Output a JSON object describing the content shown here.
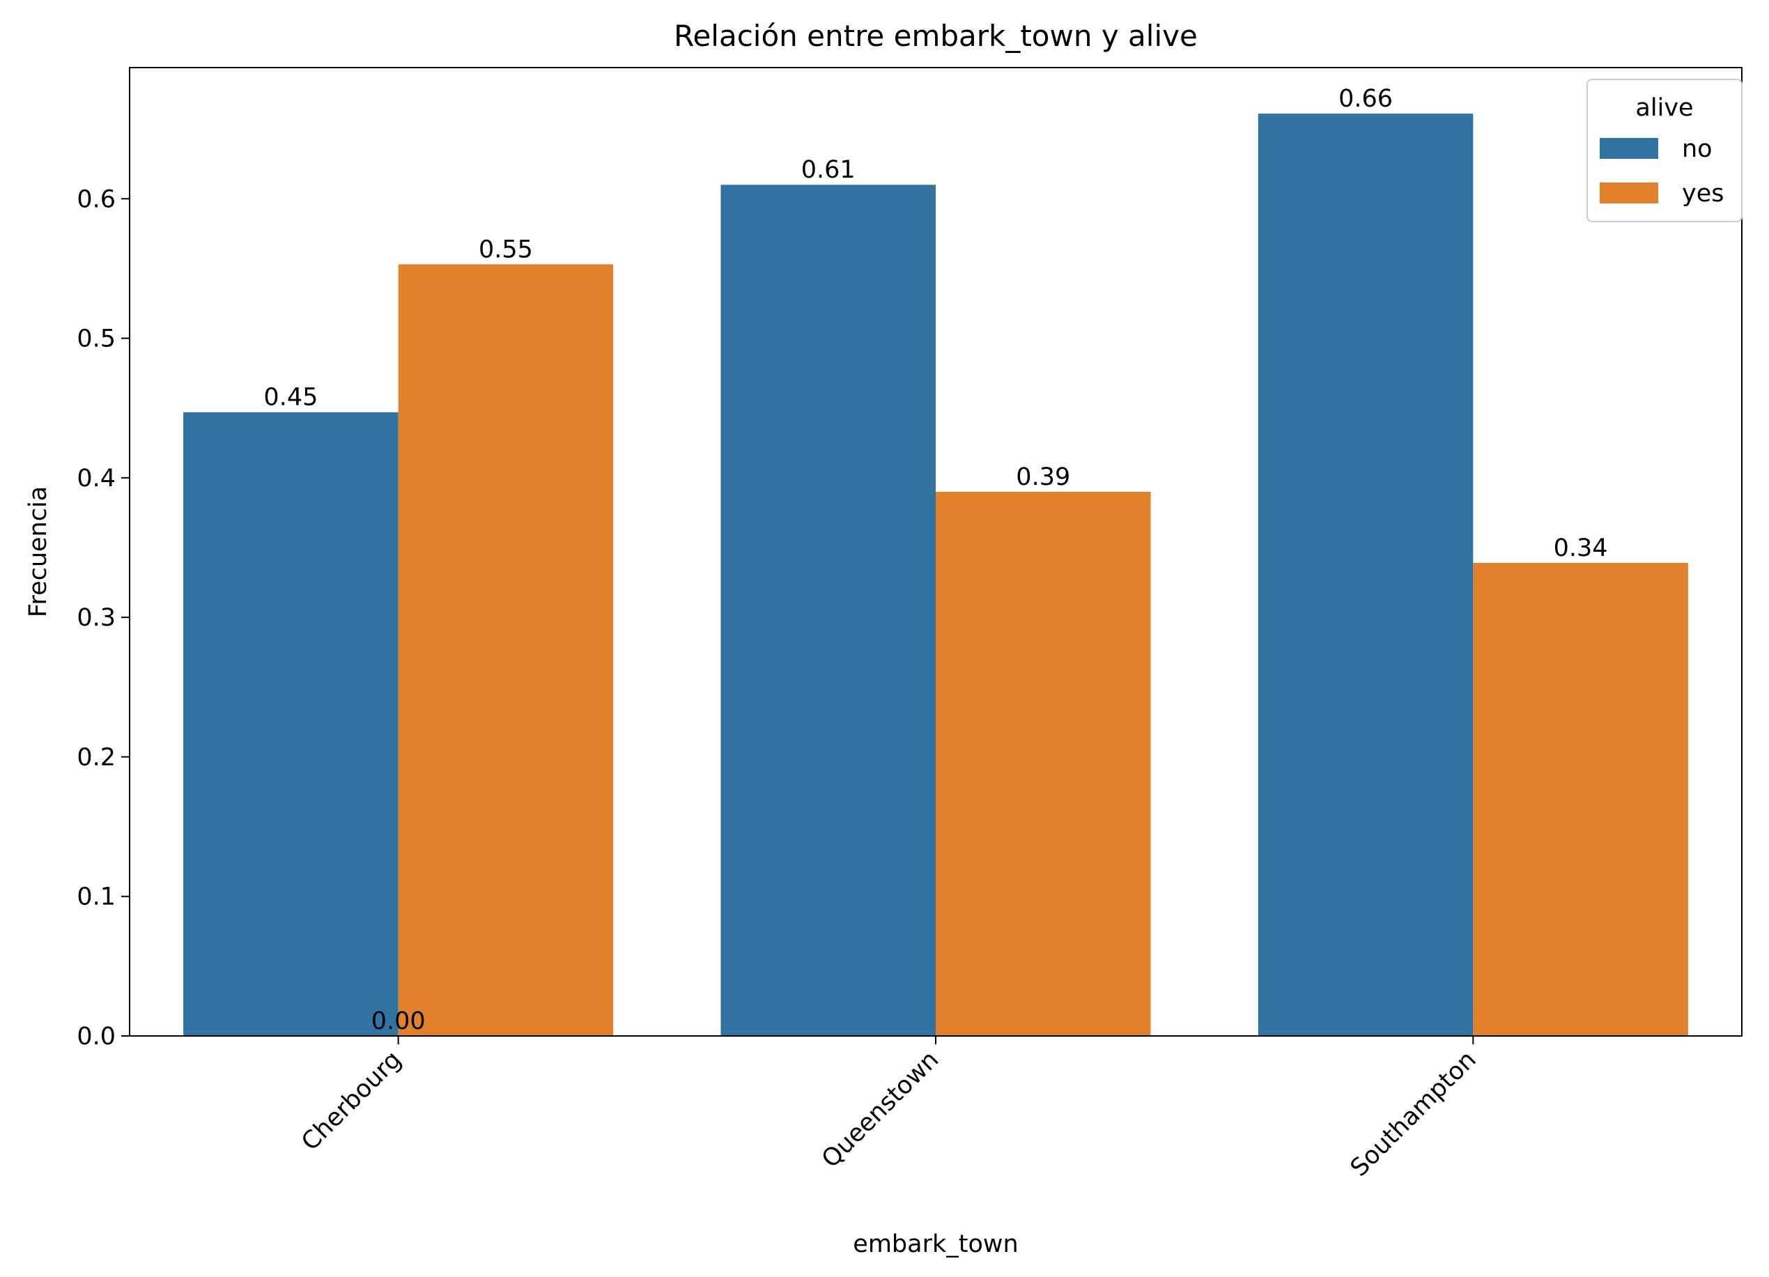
{
  "chart_data": {
    "type": "bar",
    "title": "Relación entre embark_town y alive",
    "xlabel": "embark_town",
    "ylabel": "Frecuencia",
    "categories": [
      "Cherbourg",
      "Queenstown",
      "Southampton"
    ],
    "series": [
      {
        "name": "no",
        "values": [
          0.447,
          0.61,
          0.661
        ],
        "labels": [
          "0.45",
          "0.61",
          "0.66"
        ]
      },
      {
        "name": "yes",
        "values": [
          0.553,
          0.39,
          0.339
        ],
        "labels": [
          "0.55",
          "0.39",
          "0.34"
        ]
      }
    ],
    "extra_labels": [
      {
        "text": "0.00",
        "category_boundary": 0,
        "value": 0
      }
    ],
    "ylim": [
      0,
      0.694
    ],
    "yticks": [
      0.0,
      0.1,
      0.2,
      0.3,
      0.4,
      0.5,
      0.6
    ],
    "ytick_labels": [
      "0.0",
      "0.1",
      "0.2",
      "0.3",
      "0.4",
      "0.5",
      "0.6"
    ],
    "xtick_rotation": 45,
    "legend": {
      "title": "alive",
      "placement": "top-right"
    },
    "grid": false,
    "colors": [
      "#3274a1",
      "#e1812c"
    ]
  }
}
